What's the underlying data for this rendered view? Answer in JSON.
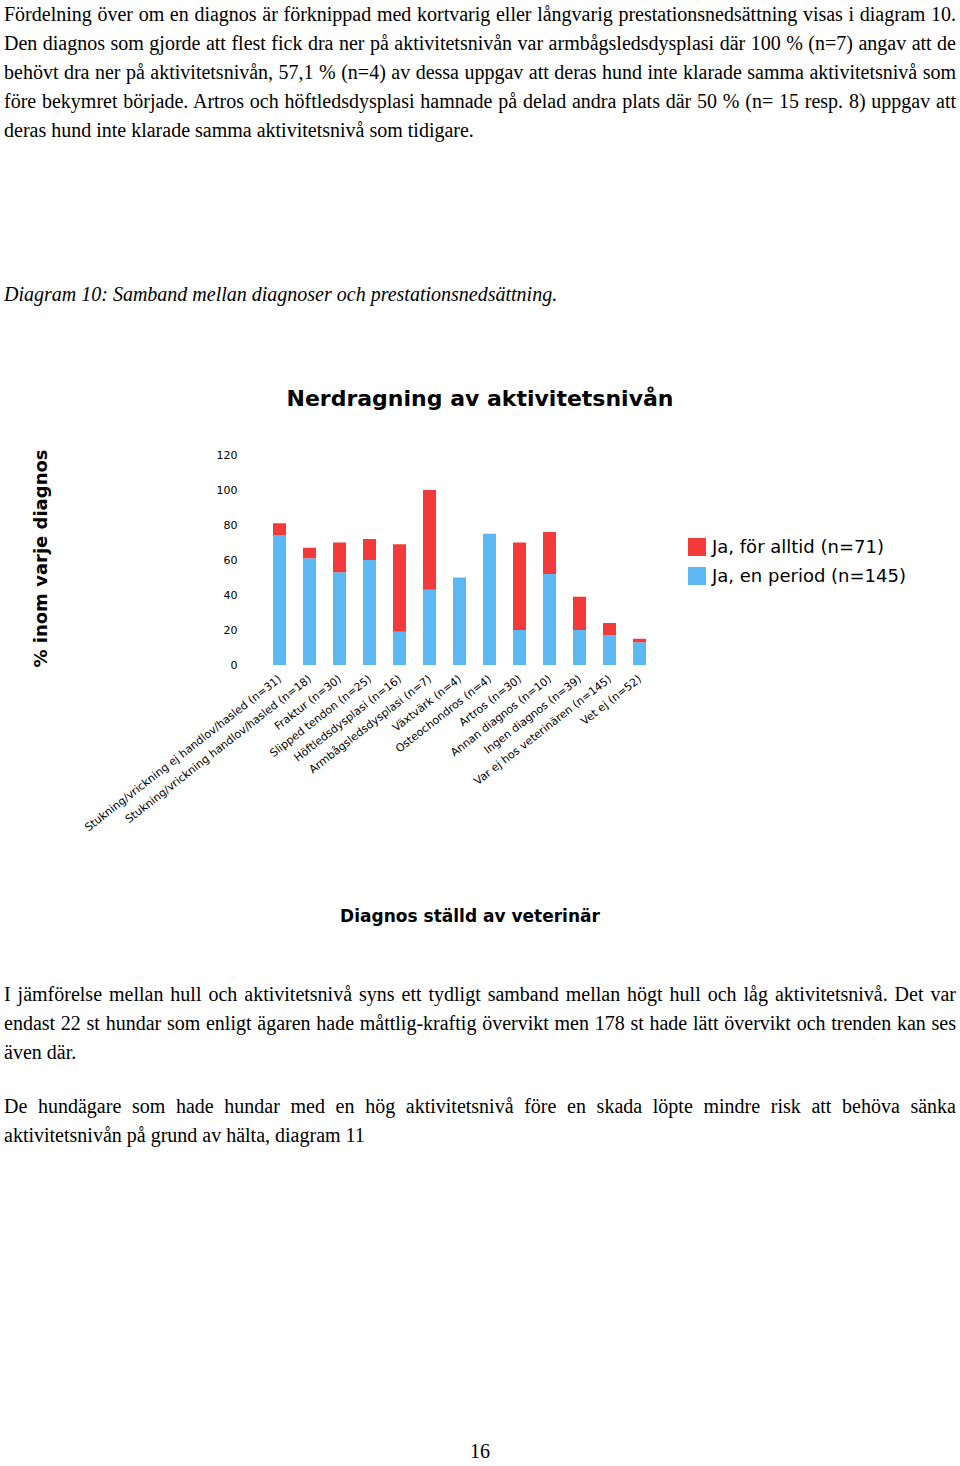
{
  "document": {
    "paragraphs_before": [
      "Fördelning över om en diagnos är förknippad med kortvarig eller långvarig prestationsnedsättning visas i diagram 10. Den diagnos som gjorde att flest fick dra ner på aktivitetsnivån var armbågsledsdysplasi där 100 % (n=7) angav att de behövt dra ner på aktivitetsnivån, 57,1 % (n=4) av dessa uppgav att deras hund inte klarade samma aktivitetsnivå som före bekymret började. Artros och höftledsdysplasi hamnade på delad andra plats där 50 % (n= 15 resp. 8) uppgav att deras hund inte klarade samma aktivitetsnivå som tidigare."
    ],
    "caption": "Diagram 10: Samband mellan diagnoser och prestationsnedsättning.",
    "paragraphs_after": [
      "I jämförelse mellan hull och aktivitetsnivå syns ett tydligt samband mellan högt hull och låg aktivitetsnivå. Det var endast 22 st hundar som enligt ägaren hade måttlig-kraftig övervikt men 178 st hade lätt övervikt och trenden kan ses även där.",
      "De hundägare som hade hundar med en hög aktivitetsnivå före en skada löpte mindre risk att behöva sänka aktivitetsnivån på grund av hälta, diagram 11"
    ],
    "page_number": "16"
  },
  "chart_data": {
    "type": "bar",
    "stacked": true,
    "title": "Nerdragning av aktivitetsnivån",
    "x_label": "Diagnos ställd av veterinär",
    "y_label": "% inom varje diagnos",
    "categories": [
      "Stukning/vrickning ej handlov/hasled (n=31)",
      "Stukning/vrickning handlov/hasled (n=18)",
      "Fraktur (n=30)",
      "Slipped tendon (n=25)",
      "Höftledsdysplasi (n=16)",
      "Armbågsledsdysplasi (n=7)",
      "Växtvärk (n=4)",
      "Osteochondros (n=4)",
      "Artros (n=30)",
      "Annan diagnos (n=10)",
      "Ingen diagnos (n=39)",
      "Var ej hos veterinären (n=145)",
      "Vet ej (n=52)"
    ],
    "series": [
      {
        "name": "Ja, för alltid (n=71)",
        "color": "#f23a3a",
        "values": [
          7,
          6,
          17,
          12,
          50,
          57,
          0,
          0,
          50,
          24,
          19,
          7,
          2
        ]
      },
      {
        "name": "Ja, en period (n=145)",
        "color": "#5cb8f2",
        "values": [
          74,
          61,
          53,
          60,
          19,
          43,
          50,
          75,
          20,
          52,
          20,
          17,
          13
        ]
      }
    ],
    "ylim": [
      0,
      120
    ],
    "yticks": [
      0,
      20,
      40,
      60,
      80,
      100,
      120
    ],
    "grid": false,
    "legend": "right"
  }
}
